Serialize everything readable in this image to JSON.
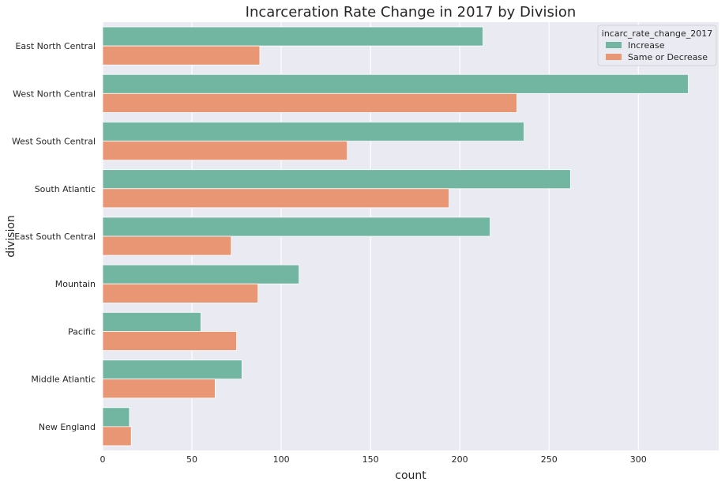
{
  "chart_data": {
    "type": "bar",
    "orientation": "horizontal",
    "title": "Incarceration Rate Change in 2017 by Division",
    "xlabel": "count",
    "ylabel": "division",
    "xlim": [
      0,
      345
    ],
    "xticks": [
      0,
      50,
      100,
      150,
      200,
      250,
      300
    ],
    "grid": true,
    "legend": {
      "title": "incarc_rate_change_2017",
      "position": "top-right"
    },
    "categories": [
      "East North Central",
      "West North Central",
      "West South Central",
      "South Atlantic",
      "East South Central",
      "Mountain",
      "Pacific",
      "Middle Atlantic",
      "New England"
    ],
    "series": [
      {
        "name": "Increase",
        "color": "#72b6a1",
        "values": [
          213,
          328,
          236,
          262,
          217,
          110,
          55,
          78,
          15
        ]
      },
      {
        "name": "Same or Decrease",
        "color": "#e99675",
        "values": [
          88,
          232,
          137,
          194,
          72,
          87,
          75,
          63,
          16
        ]
      }
    ],
    "background_color": "#eaeaf2",
    "grid_color": "#ffffff"
  }
}
